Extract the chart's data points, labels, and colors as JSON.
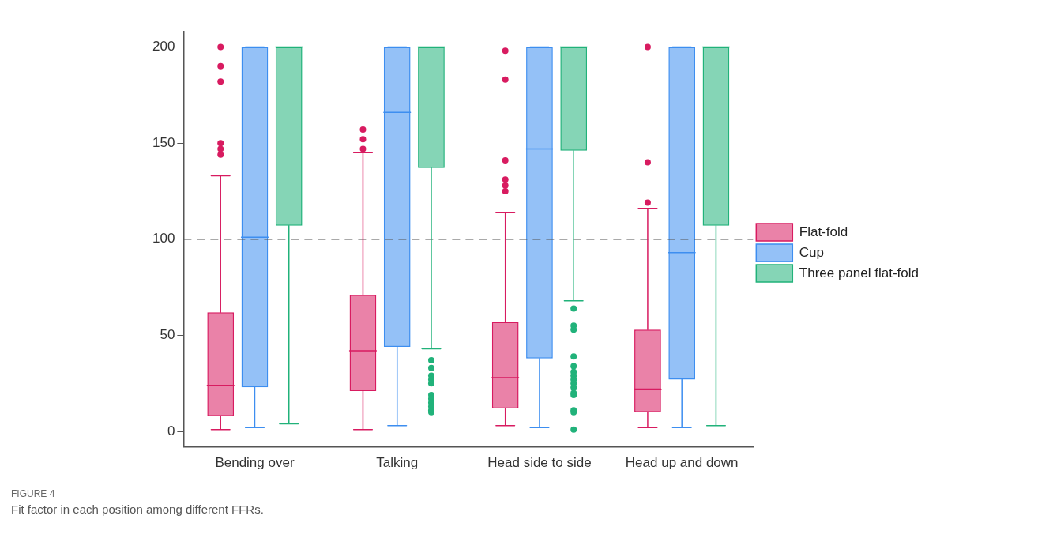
{
  "chart_data": {
    "type": "box",
    "categories": [
      "Bending over",
      "Talking",
      "Head side to side",
      "Head up and down"
    ],
    "ylim": [
      -8,
      208
    ],
    "yticks": [
      0,
      50,
      100,
      150,
      200
    ],
    "grid": false,
    "legend": "right",
    "ref_lines": [
      {
        "axis": "y",
        "value": 100,
        "color": "#555555",
        "line_style": "dashed"
      }
    ],
    "series": [
      {
        "name": "Flat-fold",
        "color": "#d81b60",
        "boxes": [
          {
            "low": 1,
            "q1": 8,
            "median": 24,
            "q3": 62,
            "high": 133,
            "outliers": [
              200,
              190,
              182,
              150,
              147,
              144
            ]
          },
          {
            "low": 1,
            "q1": 21,
            "median": 42,
            "q3": 71,
            "high": 145,
            "outliers": [
              157,
              152,
              147
            ]
          },
          {
            "low": 3,
            "q1": 12,
            "median": 28,
            "q3": 57,
            "high": 114,
            "outliers": [
              198,
              183,
              141,
              131,
              128,
              125
            ]
          },
          {
            "low": 2,
            "q1": 10,
            "median": 22,
            "q3": 53,
            "high": 116,
            "outliers": [
              200,
              140,
              119
            ]
          }
        ]
      },
      {
        "name": "Cup",
        "color": "#3d8ef0",
        "boxes": [
          {
            "low": 2,
            "q1": 23,
            "median": 101,
            "q3": 200,
            "high": 200
          },
          {
            "low": 3,
            "q1": 44,
            "median": 166,
            "q3": 200,
            "high": 200
          },
          {
            "low": 2,
            "q1": 38,
            "median": 147,
            "q3": 200,
            "high": 200
          },
          {
            "low": 2,
            "q1": 27,
            "median": 93,
            "q3": 200,
            "high": 200
          }
        ]
      },
      {
        "name": "Three panel flat-fold",
        "color": "#21b27a",
        "boxes": [
          {
            "low": 4,
            "q1": 107,
            "median": 200,
            "q3": 200,
            "high": 200
          },
          {
            "low": 43,
            "q1": 137,
            "median": 200,
            "q3": 200,
            "high": 200,
            "outliers": [
              37,
              33,
              29,
              27,
              25,
              19,
              17,
              15,
              13,
              11,
              10
            ]
          },
          {
            "low": 68,
            "q1": 146,
            "median": 200,
            "q3": 200,
            "high": 200,
            "outliers": [
              64,
              55,
              53,
              39,
              34,
              31,
              29,
              27,
              25,
              23,
              20,
              19,
              11,
              10,
              1
            ]
          },
          {
            "low": 3,
            "q1": 107,
            "median": 200,
            "q3": 200,
            "high": 200
          }
        ]
      }
    ],
    "annotations": [
      "FIGURE 4",
      "Fit factor in each position among different FFRs."
    ]
  }
}
